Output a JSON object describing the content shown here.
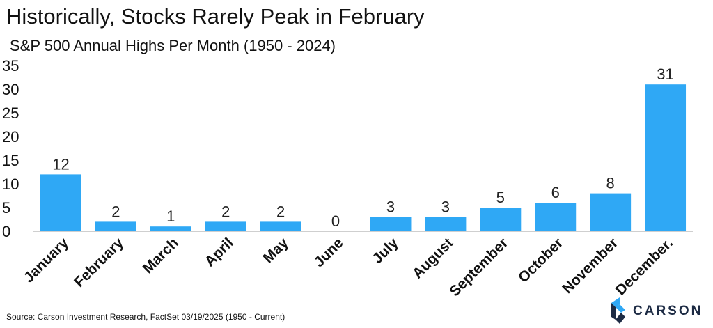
{
  "chart_data": {
    "type": "bar",
    "title": "Historically, Stocks Rarely Peak in February",
    "subtitle": "S&P 500 Annual Highs Per Month (1950 - 2024)",
    "categories": [
      "January",
      "February",
      "March",
      "April",
      "May",
      "June",
      "July",
      "August",
      "September",
      "October",
      "November",
      "December."
    ],
    "values": [
      12,
      2,
      1,
      2,
      2,
      0,
      3,
      3,
      5,
      6,
      8,
      31
    ],
    "yticks": [
      0,
      5,
      10,
      15,
      20,
      25,
      30,
      35
    ],
    "ylim": [
      0,
      35
    ],
    "xlabel": "",
    "ylabel": "",
    "grid": false,
    "bar_color": "#2FA8F5"
  },
  "source": "Source: Carson Investment Research, FactSet 03/19/2025 (1950 - Current)",
  "logo": {
    "text": "CARSON",
    "mark_color": "#2FA8F5",
    "text_color": "#1d2b44"
  }
}
